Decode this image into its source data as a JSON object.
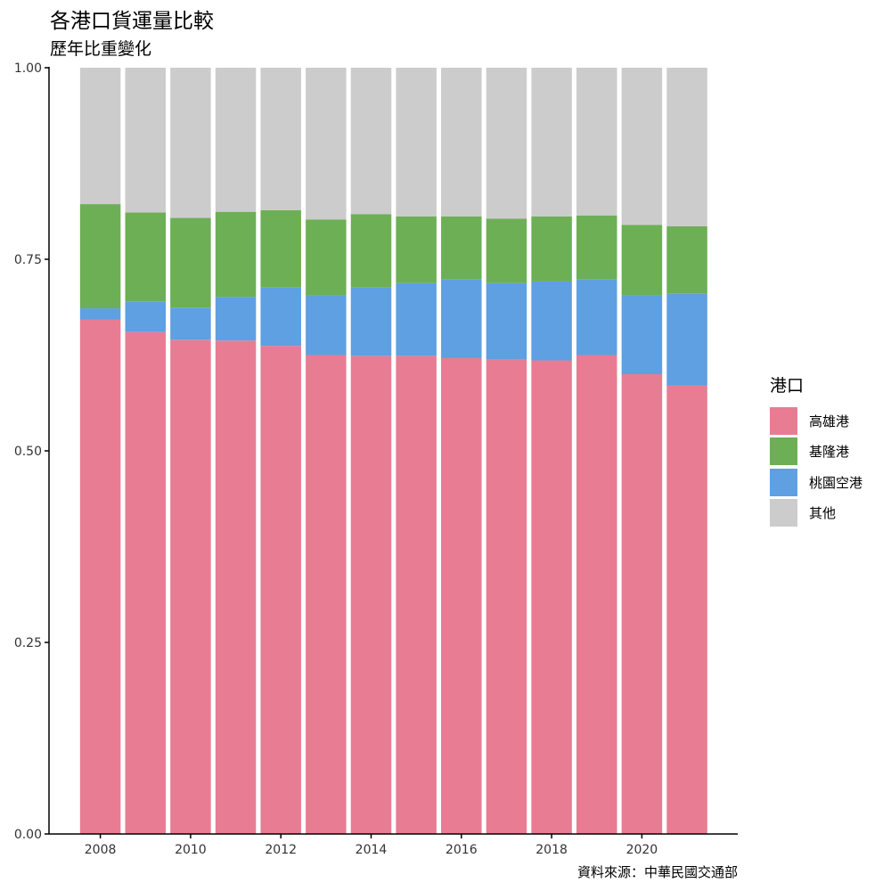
{
  "chart_data": {
    "type": "bar",
    "stacked": true,
    "title": "各港口貨運量比較",
    "subtitle": "歷年比重變化",
    "caption": "資料來源：中華民國交通部",
    "xlabel": "",
    "ylabel": "",
    "categories": [
      "2008",
      "2009",
      "2010",
      "2011",
      "2012",
      "2013",
      "2014",
      "2015",
      "2016",
      "2017",
      "2018",
      "2019",
      "2020",
      "2021"
    ],
    "x_tick_labels": [
      "2008",
      "2010",
      "2012",
      "2014",
      "2016",
      "2018",
      "2020"
    ],
    "y_tick_labels": [
      "0.00",
      "0.25",
      "0.50",
      "0.75",
      "1.00"
    ],
    "ylim": [
      0,
      1
    ],
    "grid": false,
    "legend_position": "right",
    "legend_title": "港口",
    "series": [
      {
        "name": "高雄港",
        "color": "#e87c93",
        "values": [
          0.671,
          0.655,
          0.645,
          0.644,
          0.637,
          0.625,
          0.624,
          0.624,
          0.621,
          0.619,
          0.618,
          0.625,
          0.6,
          0.585
        ]
      },
      {
        "name": "桃園空港",
        "color": "#5ea0e2",
        "values": [
          0.015,
          0.04,
          0.042,
          0.057,
          0.076,
          0.078,
          0.089,
          0.095,
          0.103,
          0.1,
          0.103,
          0.099,
          0.103,
          0.12
        ]
      },
      {
        "name": "基隆港",
        "color": "#6daf55",
        "values": [
          0.136,
          0.116,
          0.117,
          0.111,
          0.101,
          0.099,
          0.096,
          0.087,
          0.082,
          0.084,
          0.085,
          0.083,
          0.092,
          0.088
        ]
      },
      {
        "name": "其他",
        "color": "#cccccc",
        "values": [
          0.178,
          0.189,
          0.196,
          0.188,
          0.186,
          0.198,
          0.191,
          0.194,
          0.194,
          0.197,
          0.194,
          0.193,
          0.205,
          0.207
        ]
      }
    ],
    "legend_order": [
      "高雄港",
      "基隆港",
      "桃園空港",
      "其他"
    ]
  }
}
